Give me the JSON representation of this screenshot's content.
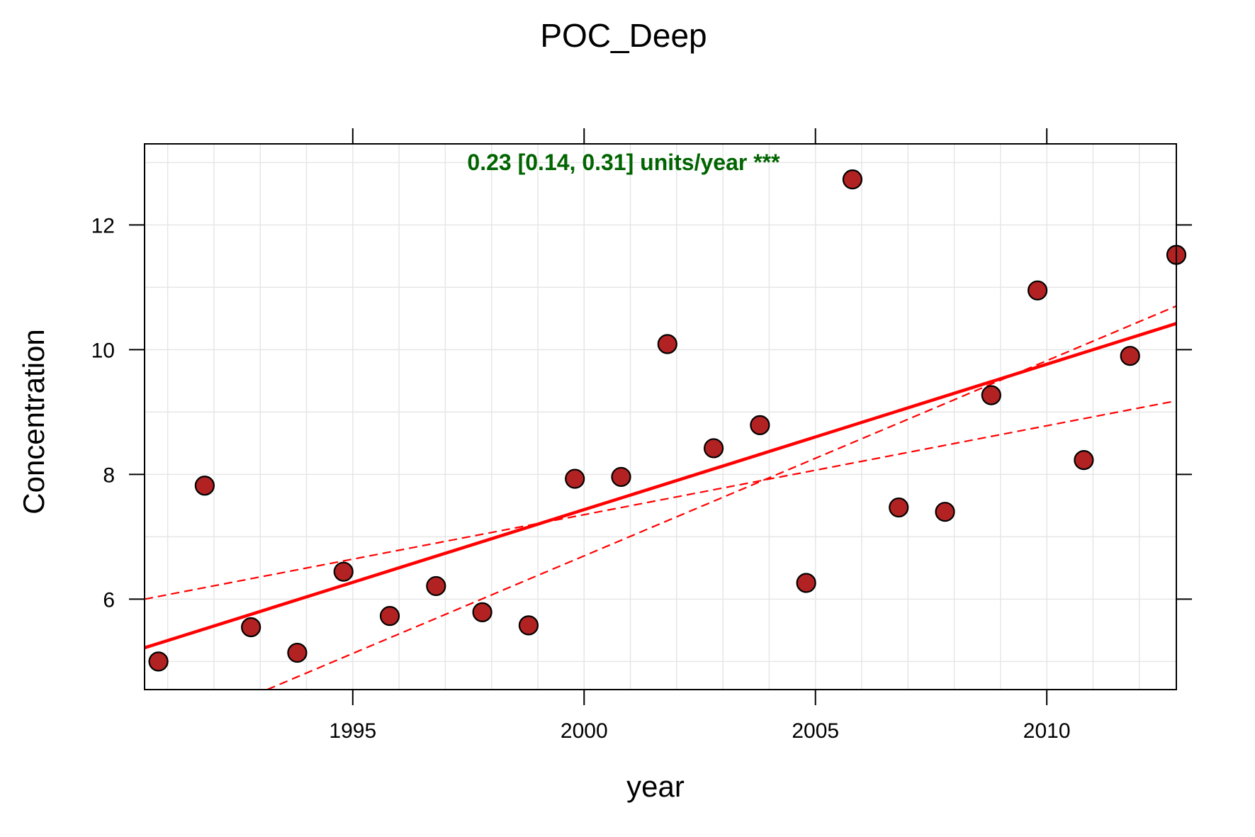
{
  "chart_data": {
    "type": "scatter",
    "title": "POC_Deep",
    "xlabel": "year",
    "ylabel": "Concentration",
    "annotation": "0.23 [0.14, 0.31] units/year ***",
    "xlim": [
      1990.5,
      2012.8
    ],
    "ylim": [
      4.55,
      13.3
    ],
    "x_ticks": [
      1995,
      2000,
      2005,
      2010
    ],
    "y_ticks": [
      6,
      8,
      10,
      12
    ],
    "grid": true,
    "points": [
      {
        "x": 1990.8,
        "y": 5.0
      },
      {
        "x": 1991.8,
        "y": 7.82
      },
      {
        "x": 1992.8,
        "y": 5.55
      },
      {
        "x": 1993.8,
        "y": 5.14
      },
      {
        "x": 1994.8,
        "y": 6.44
      },
      {
        "x": 1995.8,
        "y": 5.73
      },
      {
        "x": 1996.8,
        "y": 6.21
      },
      {
        "x": 1997.8,
        "y": 5.79
      },
      {
        "x": 1998.8,
        "y": 5.58
      },
      {
        "x": 1999.8,
        "y": 7.93
      },
      {
        "x": 2000.8,
        "y": 7.96
      },
      {
        "x": 2001.8,
        "y": 10.09
      },
      {
        "x": 2002.8,
        "y": 8.42
      },
      {
        "x": 2003.8,
        "y": 8.79
      },
      {
        "x": 2004.8,
        "y": 6.26
      },
      {
        "x": 2005.8,
        "y": 12.73
      },
      {
        "x": 2006.8,
        "y": 7.47
      },
      {
        "x": 2007.8,
        "y": 7.4
      },
      {
        "x": 2008.8,
        "y": 9.27
      },
      {
        "x": 2009.8,
        "y": 10.95
      },
      {
        "x": 2010.8,
        "y": 8.23
      },
      {
        "x": 2011.8,
        "y": 9.9
      },
      {
        "x": 2012.8,
        "y": 11.52
      }
    ],
    "trend": {
      "x": [
        1990.5,
        2012.8
      ],
      "y": [
        5.22,
        10.42
      ]
    },
    "ci_lower": {
      "x": [
        1990.5,
        2012.8
      ],
      "y": [
        6.0,
        9.18
      ]
    },
    "ci_upper": {
      "x": [
        1993.15,
        2012.8
      ],
      "y": [
        4.55,
        10.7
      ]
    },
    "colors": {
      "point_fill": "#b22222",
      "point_stroke": "#000000",
      "trend_line": "#ff0000",
      "annotation": "#006400",
      "grid": "#e6e6e6"
    }
  }
}
